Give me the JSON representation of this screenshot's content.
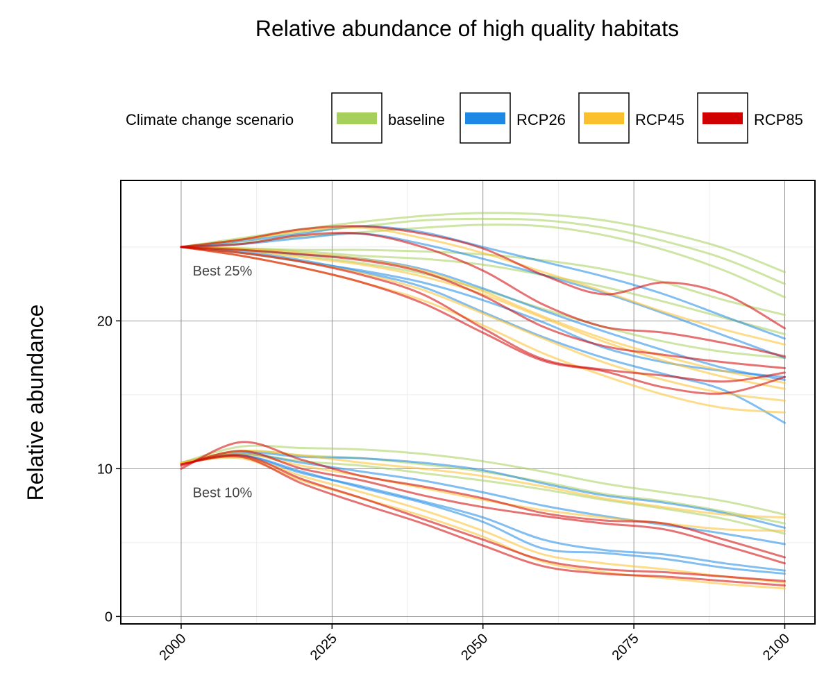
{
  "chart_data": {
    "type": "line",
    "title": "Relative abundance of high quality habitats",
    "xlabel": "",
    "ylabel": "Relative abundance",
    "xlim": [
      1990,
      2105
    ],
    "ylim": [
      -0.5,
      29.5
    ],
    "x_ticks": [
      2000,
      2025,
      2050,
      2075,
      2100
    ],
    "y_ticks": [
      0,
      10,
      20
    ],
    "grid": true,
    "legend": {
      "title": "Climate change scenario",
      "placement": "top",
      "entries": [
        {
          "label": "baseline",
          "color": "#a6cf5b"
        },
        {
          "label": "RCP26",
          "color": "#1e88e5"
        },
        {
          "label": "RCP45",
          "color": "#fbc02d"
        },
        {
          "label": "RCP85",
          "color": "#d00000"
        }
      ]
    },
    "annotations": [
      {
        "text": "Best 25%",
        "x": 2001,
        "y": 23.4
      },
      {
        "text": "Best 10%",
        "x": 2001,
        "y": 8.4
      }
    ],
    "band_x": [
      2000,
      2010,
      2020,
      2030,
      2040,
      2050,
      2060,
      2070,
      2080,
      2090,
      2100
    ],
    "series": [
      {
        "scenario": "baseline",
        "group": "Best 25%",
        "values": [
          25.0,
          25.6,
          26.2,
          26.7,
          27.1,
          27.3,
          27.2,
          26.8,
          26.0,
          24.9,
          23.3
        ]
      },
      {
        "scenario": "baseline",
        "group": "Best 25%",
        "values": [
          25.0,
          25.5,
          26.0,
          26.4,
          26.8,
          26.9,
          26.8,
          26.3,
          25.4,
          24.2,
          22.5
        ]
      },
      {
        "scenario": "baseline",
        "group": "Best 25%",
        "values": [
          25.0,
          25.3,
          25.7,
          26.0,
          26.3,
          26.5,
          26.4,
          25.8,
          24.8,
          23.4,
          21.6
        ]
      },
      {
        "scenario": "baseline",
        "group": "Best 25%",
        "values": [
          25.0,
          24.9,
          24.8,
          24.8,
          24.7,
          24.5,
          24.1,
          23.5,
          22.6,
          21.4,
          20.4
        ]
      },
      {
        "scenario": "baseline",
        "group": "Best 25%",
        "values": [
          25.0,
          24.9,
          24.7,
          24.4,
          24.2,
          23.8,
          23.1,
          22.3,
          21.3,
          20.2,
          19.1
        ]
      },
      {
        "scenario": "baseline",
        "group": "Best 25%",
        "values": [
          25.0,
          24.8,
          24.4,
          23.9,
          23.2,
          22.1,
          20.8,
          19.6,
          18.6,
          17.9,
          17.5
        ]
      },
      {
        "scenario": "RCP26",
        "group": "Best 25%",
        "values": [
          25.0,
          25.4,
          25.9,
          26.4,
          26.0,
          25.0,
          24.0,
          23.0,
          21.8,
          20.3,
          18.8
        ]
      },
      {
        "scenario": "RCP26",
        "group": "Best 25%",
        "values": [
          25.0,
          25.2,
          25.6,
          25.9,
          25.2,
          24.2,
          23.1,
          21.9,
          20.5,
          19.0,
          17.5
        ]
      },
      {
        "scenario": "RCP26",
        "group": "Best 25%",
        "values": [
          25.0,
          24.8,
          24.5,
          24.2,
          23.5,
          22.2,
          20.7,
          19.3,
          18.0,
          16.8,
          16.0
        ]
      },
      {
        "scenario": "RCP26",
        "group": "Best 25%",
        "values": [
          25.0,
          24.7,
          24.1,
          23.3,
          22.3,
          20.6,
          18.9,
          17.5,
          16.4,
          15.3,
          13.1
        ]
      },
      {
        "scenario": "RCP26",
        "group": "Best 25%",
        "values": [
          25.0,
          24.6,
          24.0,
          23.4,
          22.6,
          21.4,
          19.9,
          18.2,
          17.2,
          16.6,
          16.2
        ]
      },
      {
        "scenario": "RCP45",
        "group": "Best 25%",
        "values": [
          25.0,
          25.5,
          26.1,
          26.3,
          25.6,
          24.6,
          23.3,
          22.0,
          20.6,
          19.4,
          18.4
        ]
      },
      {
        "scenario": "RCP45",
        "group": "Best 25%",
        "values": [
          25.0,
          24.9,
          24.6,
          24.2,
          23.4,
          22.0,
          20.3,
          18.8,
          17.6,
          16.6,
          15.8
        ]
      },
      {
        "scenario": "RCP45",
        "group": "Best 25%",
        "values": [
          25.0,
          24.6,
          24.0,
          23.2,
          22.1,
          20.5,
          18.8,
          17.2,
          16.0,
          15.1,
          14.6
        ]
      },
      {
        "scenario": "RCP45",
        "group": "Best 25%",
        "values": [
          25.0,
          24.4,
          23.6,
          22.6,
          21.4,
          19.7,
          17.8,
          16.3,
          15.0,
          14.1,
          13.8
        ]
      },
      {
        "scenario": "RCP45",
        "group": "Best 25%",
        "values": [
          25.0,
          24.8,
          24.3,
          23.8,
          23.0,
          21.8,
          20.2,
          18.6,
          17.3,
          16.2,
          15.4
        ]
      },
      {
        "scenario": "RCP85",
        "group": "Best 25%",
        "values": [
          25.0,
          25.5,
          26.2,
          26.4,
          25.9,
          24.9,
          23.1,
          21.8,
          22.6,
          21.8,
          19.5
        ]
      },
      {
        "scenario": "RCP85",
        "group": "Best 25%",
        "values": [
          25.0,
          25.2,
          25.8,
          25.9,
          25.0,
          23.4,
          21.1,
          19.6,
          19.2,
          18.5,
          17.6
        ]
      },
      {
        "scenario": "RCP85",
        "group": "Best 25%",
        "values": [
          25.0,
          24.8,
          24.5,
          24.1,
          23.3,
          21.7,
          19.6,
          18.3,
          17.7,
          17.2,
          16.8
        ]
      },
      {
        "scenario": "RCP85",
        "group": "Best 25%",
        "values": [
          25.0,
          24.6,
          24.0,
          23.1,
          21.8,
          19.5,
          17.4,
          16.7,
          16.3,
          15.9,
          16.5
        ]
      },
      {
        "scenario": "RCP85",
        "group": "Best 25%",
        "values": [
          25.0,
          24.4,
          23.6,
          22.6,
          21.2,
          19.2,
          17.3,
          16.6,
          15.5,
          15.1,
          16.2
        ]
      },
      {
        "scenario": "baseline",
        "group": "Best 10%",
        "values": [
          10.4,
          11.5,
          11.4,
          11.3,
          11.0,
          10.5,
          9.8,
          9.0,
          8.4,
          7.8,
          6.9
        ]
      },
      {
        "scenario": "baseline",
        "group": "Best 10%",
        "values": [
          10.4,
          11.2,
          10.9,
          10.7,
          10.3,
          9.8,
          9.1,
          8.3,
          7.8,
          7.1,
          6.3
        ]
      },
      {
        "scenario": "baseline",
        "group": "Best 10%",
        "values": [
          10.4,
          11.0,
          10.5,
          10.2,
          9.7,
          9.2,
          8.6,
          7.9,
          7.3,
          6.6,
          5.6
        ]
      },
      {
        "scenario": "RCP26",
        "group": "Best 10%",
        "values": [
          10.4,
          11.1,
          10.8,
          10.7,
          10.4,
          9.9,
          9.0,
          8.2,
          7.7,
          7.0,
          6.0
        ]
      },
      {
        "scenario": "RCP26",
        "group": "Best 10%",
        "values": [
          10.4,
          11.0,
          10.4,
          9.8,
          9.2,
          8.4,
          7.5,
          6.8,
          6.2,
          5.6,
          4.9
        ]
      },
      {
        "scenario": "RCP26",
        "group": "Best 10%",
        "values": [
          10.4,
          10.9,
          9.8,
          8.7,
          7.7,
          6.4,
          4.6,
          4.3,
          3.9,
          3.3,
          2.9
        ]
      },
      {
        "scenario": "RCP26",
        "group": "Best 10%",
        "values": [
          10.4,
          10.9,
          9.7,
          8.8,
          7.8,
          6.7,
          5.2,
          4.5,
          4.2,
          3.6,
          3.1
        ]
      },
      {
        "scenario": "RCP45",
        "group": "Best 10%",
        "values": [
          10.4,
          11.2,
          10.9,
          10.4,
          10.0,
          9.5,
          8.8,
          8.0,
          7.4,
          6.9,
          6.7
        ]
      },
      {
        "scenario": "RCP45",
        "group": "Best 10%",
        "values": [
          10.4,
          11.0,
          10.2,
          9.5,
          8.7,
          7.9,
          7.2,
          6.7,
          6.3,
          5.9,
          5.8
        ]
      },
      {
        "scenario": "RCP45",
        "group": "Best 10%",
        "values": [
          10.4,
          10.8,
          9.5,
          8.4,
          7.2,
          5.8,
          4.2,
          3.6,
          3.2,
          2.7,
          2.3
        ]
      },
      {
        "scenario": "RCP45",
        "group": "Best 10%",
        "values": [
          10.4,
          10.7,
          9.2,
          8.0,
          6.8,
          5.4,
          3.7,
          3.0,
          2.6,
          2.2,
          1.9
        ]
      },
      {
        "scenario": "RCP85",
        "group": "Best 10%",
        "values": [
          10.0,
          11.8,
          10.6,
          9.5,
          8.8,
          8.0,
          7.0,
          6.5,
          6.3,
          5.2,
          4.0
        ]
      },
      {
        "scenario": "RCP85",
        "group": "Best 10%",
        "values": [
          10.2,
          11.2,
          10.0,
          9.2,
          8.2,
          7.4,
          6.8,
          6.3,
          5.9,
          4.8,
          3.6
        ]
      },
      {
        "scenario": "RCP85",
        "group": "Best 10%",
        "values": [
          10.3,
          10.9,
          9.3,
          8.0,
          6.6,
          5.2,
          3.8,
          3.2,
          3.0,
          2.7,
          2.4
        ]
      },
      {
        "scenario": "RCP85",
        "group": "Best 10%",
        "values": [
          10.3,
          10.8,
          9.0,
          7.6,
          6.3,
          4.8,
          3.4,
          2.9,
          2.7,
          2.4,
          2.1
        ]
      }
    ]
  }
}
